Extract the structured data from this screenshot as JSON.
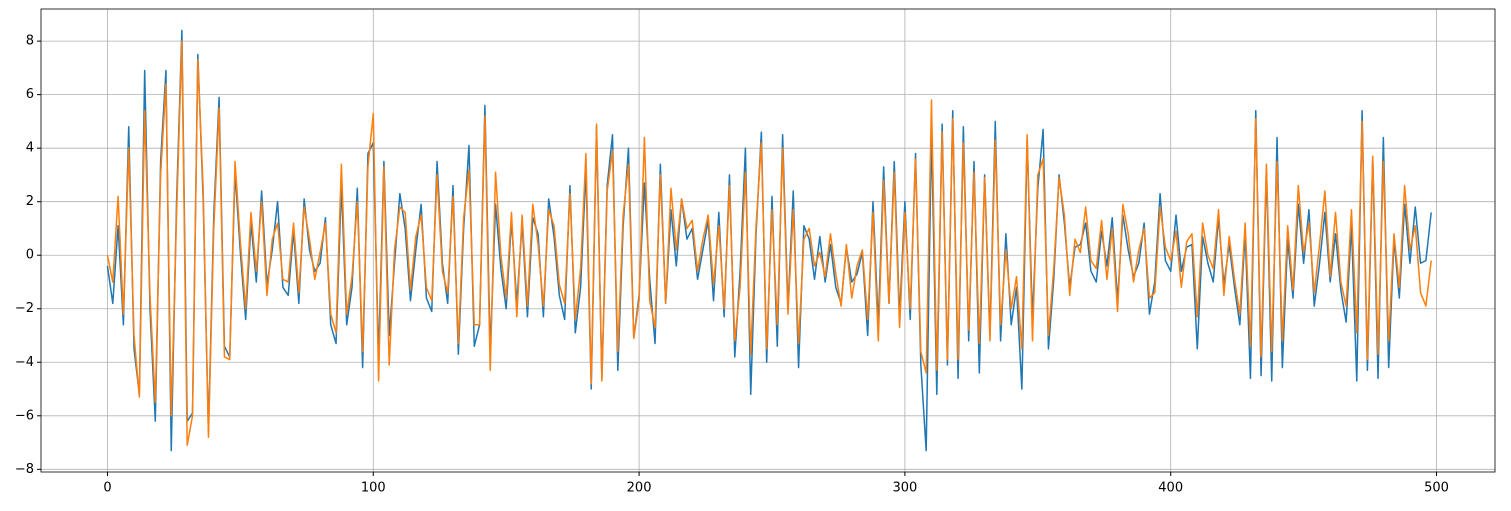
{
  "chart_data": {
    "type": "line",
    "x": [
      0,
      2,
      4,
      6,
      8,
      10,
      12,
      14,
      16,
      18,
      20,
      22,
      24,
      26,
      28,
      30,
      32,
      34,
      36,
      38,
      40,
      42,
      44,
      46,
      48,
      50,
      52,
      54,
      56,
      58,
      60,
      62,
      64,
      66,
      68,
      70,
      72,
      74,
      76,
      78,
      80,
      82,
      84,
      86,
      88,
      90,
      92,
      94,
      96,
      98,
      100,
      102,
      104,
      106,
      108,
      110,
      112,
      114,
      116,
      118,
      120,
      122,
      124,
      126,
      128,
      130,
      132,
      134,
      136,
      138,
      140,
      142,
      144,
      146,
      148,
      150,
      152,
      154,
      156,
      158,
      160,
      162,
      164,
      166,
      168,
      170,
      172,
      174,
      176,
      178,
      180,
      182,
      184,
      186,
      188,
      190,
      192,
      194,
      196,
      198,
      200,
      202,
      204,
      206,
      208,
      210,
      212,
      214,
      216,
      218,
      220,
      222,
      224,
      226,
      228,
      230,
      232,
      234,
      236,
      238,
      240,
      242,
      244,
      246,
      248,
      250,
      252,
      254,
      256,
      258,
      260,
      262,
      264,
      266,
      268,
      270,
      272,
      274,
      276,
      278,
      280,
      282,
      284,
      286,
      288,
      290,
      292,
      294,
      296,
      298,
      300,
      302,
      304,
      306,
      308,
      310,
      312,
      314,
      316,
      318,
      320,
      322,
      324,
      326,
      328,
      330,
      332,
      334,
      336,
      338,
      340,
      342,
      344,
      346,
      348,
      350,
      352,
      354,
      356,
      358,
      360,
      362,
      364,
      366,
      368,
      370,
      372,
      374,
      376,
      378,
      380,
      382,
      384,
      386,
      388,
      390,
      392,
      394,
      396,
      398,
      400,
      402,
      404,
      406,
      408,
      410,
      412,
      414,
      416,
      418,
      420,
      422,
      424,
      426,
      428,
      430,
      432,
      434,
      436,
      438,
      440,
      442,
      444,
      446,
      448,
      450,
      452,
      454,
      456,
      458,
      460,
      462,
      464,
      466,
      468,
      470,
      472,
      474,
      476,
      478,
      480,
      482,
      484,
      486,
      488,
      490,
      492,
      494,
      496,
      498
    ],
    "series": [
      {
        "color": "#1f77b4",
        "values": [
          -0.4,
          -1.8,
          1.1,
          -2.6,
          4.8,
          -3.5,
          -5.2,
          6.9,
          -2.0,
          -6.2,
          3.5,
          6.9,
          -7.3,
          2.0,
          8.4,
          -6.2,
          -5.9,
          7.5,
          2.1,
          -6.6,
          1.5,
          5.9,
          -3.4,
          -3.8,
          3.1,
          0.1,
          -2.4,
          1.2,
          -1.0,
          2.4,
          -1.1,
          0.2,
          2.0,
          -1.2,
          -1.5,
          0.9,
          -1.8,
          2.1,
          0.2,
          -0.6,
          -0.3,
          1.4,
          -2.6,
          -3.3,
          2.6,
          -2.6,
          -1.2,
          2.5,
          -4.2,
          3.8,
          4.2,
          -3.8,
          3.5,
          -3.0,
          -0.3,
          2.3,
          1.0,
          -1.7,
          0.2,
          1.9,
          -1.6,
          -2.1,
          3.5,
          -0.3,
          -1.8,
          2.6,
          -3.7,
          1.0,
          4.1,
          -3.4,
          -2.6,
          5.6,
          -3.6,
          1.9,
          -0.5,
          -2.0,
          1.3,
          -1.8,
          1.2,
          -2.3,
          1.4,
          0.8,
          -2.3,
          2.1,
          0.7,
          -1.5,
          -2.4,
          2.6,
          -2.9,
          -1.2,
          3.2,
          -5.0,
          4.8,
          -4.6,
          2.6,
          4.5,
          -4.3,
          1.1,
          4.0,
          -3.1,
          -1.5,
          2.7,
          -0.9,
          -3.3,
          3.4,
          -1.8,
          1.7,
          -0.4,
          2.1,
          0.6,
          1.0,
          -0.9,
          0.2,
          1.3,
          -1.7,
          1.6,
          -2.3,
          3.0,
          -3.8,
          -0.6,
          4.0,
          -5.2,
          0.8,
          4.6,
          -4.0,
          2.2,
          -3.4,
          4.5,
          -2.0,
          2.4,
          -4.2,
          1.1,
          0.6,
          -0.9,
          0.7,
          -1.0,
          0.4,
          -1.2,
          -1.8,
          0.3,
          -1.0,
          -0.7,
          0.1,
          -3.0,
          2.0,
          -2.6,
          3.3,
          -1.8,
          3.5,
          -2.3,
          2.0,
          -2.4,
          3.8,
          -4.1,
          -7.3,
          4.6,
          -5.2,
          4.9,
          -4.1,
          5.4,
          -4.6,
          4.8,
          -3.2,
          3.5,
          -4.4,
          3.0,
          -3.0,
          5.0,
          -3.2,
          0.8,
          -2.6,
          -1.2,
          -5.0,
          4.3,
          -2.4,
          2.5,
          4.7,
          -3.5,
          -0.9,
          3.0,
          1.2,
          -1.2,
          0.3,
          0.4,
          1.2,
          -0.6,
          -1.0,
          0.9,
          -0.4,
          1.4,
          -1.7,
          1.5,
          0.2,
          -0.8,
          -0.3,
          1.2,
          -2.2,
          -1.0,
          2.3,
          -0.2,
          -0.6,
          1.5,
          -0.6,
          0.3,
          0.4,
          -3.5,
          0.7,
          -0.3,
          -1.0,
          1.4,
          -1.1,
          0.4,
          -1.2,
          -2.6,
          0.8,
          -4.6,
          5.4,
          -4.5,
          3.2,
          -4.7,
          4.4,
          -4.2,
          0.6,
          -1.6,
          1.9,
          -0.3,
          1.7,
          -1.9,
          -0.3,
          1.6,
          -1.0,
          0.8,
          -1.3,
          -2.5,
          1.1,
          -4.7,
          5.4,
          -4.3,
          3.6,
          -4.6,
          4.4,
          -4.2,
          0.6,
          -1.6,
          1.9,
          -0.3,
          1.8,
          -0.3,
          -0.2,
          1.6
        ]
      },
      {
        "color": "#ff7f0e",
        "values": [
          0.0,
          -1.0,
          2.2,
          -2.2,
          4.0,
          -3.0,
          -5.3,
          5.4,
          -1.5,
          -5.5,
          3.0,
          6.4,
          -6.0,
          1.5,
          8.0,
          -7.1,
          -6.0,
          7.3,
          2.5,
          -6.8,
          1.0,
          5.5,
          -3.8,
          -3.9,
          3.5,
          0.5,
          -2.0,
          1.6,
          -0.6,
          2.0,
          -1.5,
          0.6,
          1.2,
          -0.9,
          -1.0,
          1.2,
          -1.4,
          1.8,
          0.6,
          -0.9,
          0.1,
          1.2,
          -2.2,
          -2.9,
          3.4,
          -2.2,
          -0.8,
          2.0,
          -3.6,
          3.3,
          5.3,
          -4.7,
          3.3,
          -4.1,
          0.2,
          1.8,
          1.6,
          -1.3,
          0.7,
          1.5,
          -1.2,
          -1.7,
          3.0,
          -0.6,
          -1.4,
          2.2,
          -3.3,
          1.4,
          3.2,
          -2.6,
          -2.6,
          5.2,
          -4.3,
          3.1,
          0.0,
          -1.6,
          1.6,
          -2.3,
          1.5,
          -1.9,
          1.9,
          0.4,
          -1.9,
          1.7,
          1.1,
          -1.1,
          -1.8,
          2.3,
          -2.4,
          -0.5,
          3.8,
          -4.8,
          4.9,
          -4.7,
          2.4,
          3.9,
          -3.6,
          1.5,
          3.4,
          -3.1,
          -1.7,
          4.4,
          -1.7,
          -2.7,
          3.0,
          -1.8,
          2.5,
          0.2,
          2.1,
          1.0,
          1.3,
          -0.6,
          0.6,
          1.5,
          -1.1,
          1.1,
          -2.0,
          2.6,
          -3.2,
          -1.2,
          3.1,
          -3.7,
          1.1,
          4.2,
          -3.5,
          1.7,
          -2.6,
          4.0,
          -2.2,
          1.7,
          -3.3,
          0.6,
          1.0,
          -0.4,
          0.1,
          -0.8,
          0.8,
          -0.7,
          -1.9,
          0.4,
          -1.6,
          -0.4,
          0.2,
          -2.4,
          1.6,
          -3.2,
          2.8,
          -1.8,
          3.1,
          -2.7,
          1.6,
          -2.0,
          3.6,
          -3.6,
          -4.4,
          5.8,
          -4.3,
          4.6,
          -3.9,
          5.1,
          -3.9,
          4.2,
          -2.8,
          3.1,
          -3.3,
          2.9,
          -3.2,
          4.3,
          -2.6,
          0.2,
          -2.0,
          -0.8,
          -3.5,
          4.5,
          -3.2,
          3.0,
          3.6,
          -3.0,
          -0.5,
          2.9,
          1.5,
          -1.5,
          0.6,
          0.1,
          1.8,
          -0.2,
          -0.5,
          1.3,
          -0.9,
          1.0,
          -2.1,
          1.9,
          0.8,
          -1.0,
          0.2,
          1.0,
          -1.6,
          -1.4,
          1.8,
          0.3,
          -0.2,
          0.9,
          -1.2,
          0.5,
          0.8,
          -2.3,
          1.2,
          0.0,
          -0.5,
          1.7,
          -1.5,
          0.7,
          -0.9,
          -2.2,
          1.2,
          -3.4,
          5.1,
          -3.8,
          3.4,
          -3.6,
          3.5,
          -3.2,
          1.1,
          -1.3,
          2.6,
          0.1,
          1.2,
          -1.4,
          0.4,
          2.4,
          -0.8,
          1.6,
          -1.0,
          -1.9,
          1.7,
          -2.9,
          5.0,
          -3.9,
          3.7,
          -3.7,
          3.5,
          -3.2,
          0.8,
          -1.2,
          2.6,
          0.2,
          1.1,
          -1.4,
          -1.9,
          -0.2
        ]
      }
    ],
    "xlim": [
      -25,
      522
    ],
    "ylim": [
      -8.1,
      9.2
    ],
    "xticks": [
      0,
      100,
      200,
      300,
      400,
      500
    ],
    "yticks": [
      {
        "value": -8,
        "label": "−8"
      },
      {
        "value": -6,
        "label": "−6"
      },
      {
        "value": -4,
        "label": "−4"
      },
      {
        "value": -2,
        "label": "−2"
      },
      0,
      2,
      4,
      6,
      8
    ],
    "grid": true
  }
}
